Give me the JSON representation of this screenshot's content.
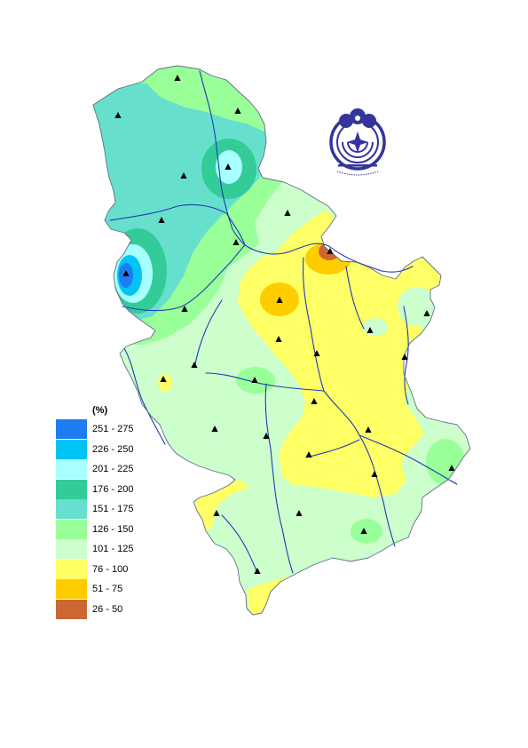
{
  "legend": {
    "title": "(%)",
    "items": [
      {
        "label": "251 - 275",
        "color": "#1e7cf0"
      },
      {
        "label": "226 - 250",
        "color": "#00c4f4"
      },
      {
        "label": "201 - 225",
        "color": "#a8ffff"
      },
      {
        "label": "176 - 200",
        "color": "#33cc99"
      },
      {
        "label": "151 - 175",
        "color": "#66e0cc"
      },
      {
        "label": "126 - 150",
        "color": "#99ff99"
      },
      {
        "label": "101 - 125",
        "color": "#ccffcc"
      },
      {
        "label": "76 - 100",
        "color": "#ffff66"
      },
      {
        "label": "51 - 75",
        "color": "#ffcc00"
      },
      {
        "label": "26 - 50",
        "color": "#cc6633"
      }
    ]
  },
  "colors": {
    "river": "#1f3bb3",
    "border": "#5e6e86",
    "station": "#000000",
    "logo": "#34349c"
  },
  "icons": {
    "station": "triangle-icon",
    "logo": "emblem-icon"
  }
}
